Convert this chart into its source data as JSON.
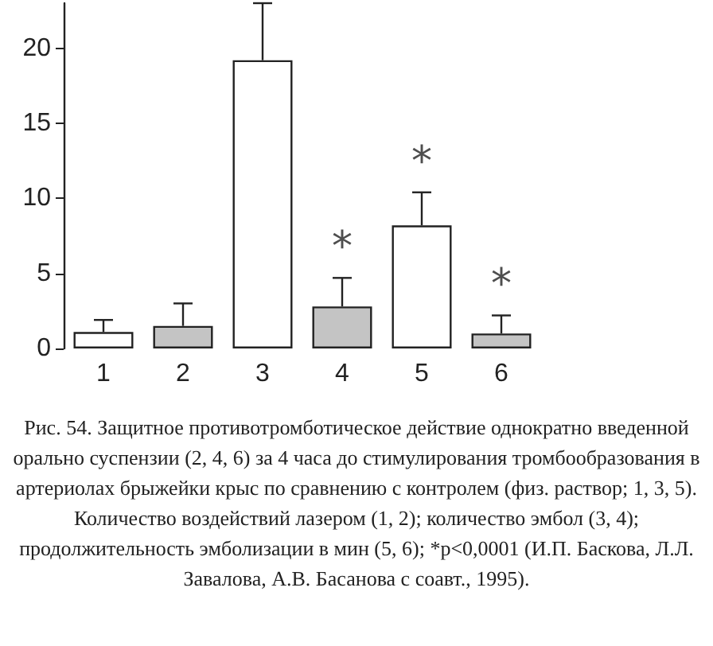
{
  "chart_data": {
    "type": "bar",
    "categories": [
      "1",
      "2",
      "3",
      "4",
      "5",
      "6"
    ],
    "values": [
      1.1,
      1.5,
      19.2,
      2.8,
      8.2,
      1.0
    ],
    "colors": [
      "#ffffff",
      "#c4c4c4",
      "#ffffff",
      "#c4c4c4",
      "#ffffff",
      "#c4c4c4"
    ],
    "errors": [
      [
        1.1,
        1.9
      ],
      [
        1.5,
        3.0
      ],
      [
        19.2,
        23
      ],
      [
        2.8,
        4.7
      ],
      [
        8.2,
        10.4
      ],
      [
        1.0,
        2.2
      ]
    ],
    "value_labels": [
      null,
      null,
      null,
      "*",
      "*",
      "*"
    ],
    "ylim": [
      0,
      23
    ],
    "yticks": [
      0,
      5,
      10,
      15,
      20
    ],
    "grid": false,
    "annotations": [
      "Рис. 54. Защитное противотромботическое действие однократно введенной орально суспензии (2, 4, 6) за 4 часа до стимулирования тромбообразования в артериолах брыжейки крыс по сравнению с контролем (физ. раствор; 1, 3, 5). Количество воздействий лазером (1, 2); количество эмбол (3, 4); продолжительность эмболизации в мин (5, 6); *p<0,0001 (И.П. Баскова, Л.Л. Завалова, А.В. Басанова с соавт., 1995)."
    ]
  }
}
